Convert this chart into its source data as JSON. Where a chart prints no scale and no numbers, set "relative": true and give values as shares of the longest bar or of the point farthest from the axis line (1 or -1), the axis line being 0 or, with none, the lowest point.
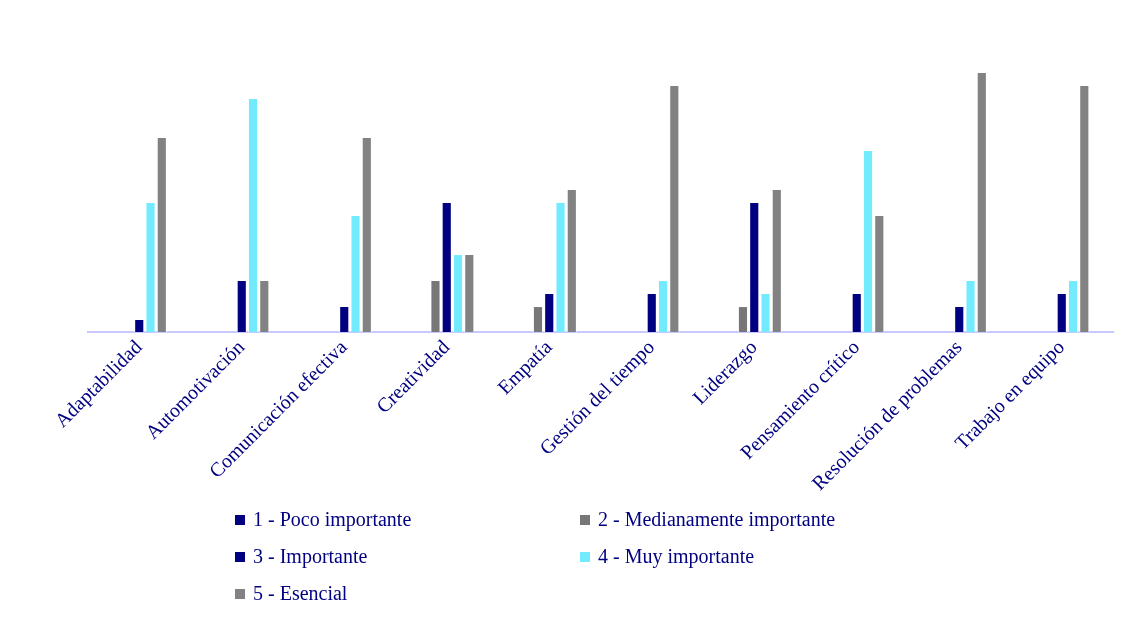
{
  "chart_data": {
    "type": "bar",
    "relative": true,
    "legend": "bottom",
    "categories": [
      "Adaptabilidad",
      "Automotivación",
      "Comunicación efectiva",
      "Creatividad",
      "Empatía",
      "Gestión del tiempo",
      "Liderazgo",
      "Pensamiento crítico",
      "Resolución de problemas",
      "Trabajo en equipo"
    ],
    "series": [
      {
        "name": "1 - Poco importante",
        "color": "#000080",
        "values": [
          0,
          0,
          0,
          0,
          0,
          0,
          0,
          0,
          0,
          0
        ]
      },
      {
        "name": "2 - Medianamente importante",
        "color": "#777777",
        "values": [
          0,
          0,
          0,
          0.2,
          0.1,
          0,
          0.1,
          0,
          0,
          0
        ]
      },
      {
        "name": "3 - Importante",
        "color": "#000080",
        "values": [
          0.05,
          0.2,
          0.1,
          0.5,
          0.15,
          0.15,
          0.5,
          0.15,
          0.1,
          0.15
        ]
      },
      {
        "name": "4 - Muy importante",
        "color": "#73ebff",
        "values": [
          0.5,
          0.9,
          0.45,
          0.3,
          0.5,
          0.2,
          0.15,
          0.7,
          0.2,
          0.2
        ]
      },
      {
        "name": "5 - Esencial",
        "color": "#828282",
        "values": [
          0.75,
          0.2,
          0.75,
          0.3,
          0.55,
          0.95,
          0.55,
          0.45,
          1,
          0.95
        ]
      }
    ]
  }
}
